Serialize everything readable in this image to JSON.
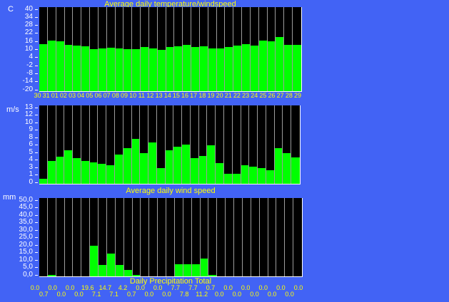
{
  "palette": {
    "background_blue": "#4263f5",
    "plot_black": "#000000",
    "bar_green": "#00ff00",
    "grid_gray": "#9c9c9c",
    "title_yellow": "#ffff00",
    "axis_white": "#ffffff",
    "plot_border_white": "#ffffff"
  },
  "chart_data": [
    {
      "id": "temperature",
      "type": "bar",
      "title": "Average daily temperature/windspeed",
      "unit": "C",
      "ylim": [
        -20,
        40
      ],
      "yticks": [
        "40",
        "34",
        "28",
        "22",
        "16",
        "10",
        "4",
        "-2",
        "-8",
        "-14",
        "-20"
      ],
      "grid": "column-separators",
      "legend": "none",
      "categories": [
        "30",
        "31",
        "01",
        "02",
        "03",
        "04",
        "05",
        "06",
        "07",
        "08",
        "09",
        "10",
        "11",
        "12",
        "13",
        "14",
        "15",
        "16",
        "17",
        "18",
        "19",
        "20",
        "21",
        "22",
        "23",
        "24",
        "25",
        "26",
        "27",
        "28",
        "29"
      ],
      "values": [
        13.5,
        16,
        15.5,
        13,
        12.5,
        12,
        10,
        10.5,
        11,
        10.5,
        10,
        10,
        11.5,
        10.5,
        9.5,
        11.5,
        12,
        13,
        11.5,
        12,
        10.5,
        10.5,
        11.5,
        12.5,
        13.5,
        12.5,
        16,
        15.5,
        18.5,
        13,
        13
      ]
    },
    {
      "id": "wind",
      "type": "bar",
      "title": "",
      "unit": "m/s",
      "ylim": [
        0,
        13
      ],
      "yticks": [
        "13",
        "12",
        "10",
        "9",
        "8",
        "6",
        "5",
        "4",
        "3",
        "1",
        "0"
      ],
      "grid": "column-separators",
      "legend": "none",
      "categories": [
        "30",
        "31",
        "01",
        "02",
        "03",
        "04",
        "05",
        "06",
        "07",
        "08",
        "09",
        "10",
        "11",
        "12",
        "13",
        "14",
        "15",
        "16",
        "17",
        "18",
        "19",
        "20",
        "21",
        "22",
        "23",
        "24",
        "25",
        "26",
        "27",
        "28",
        "29"
      ],
      "values": [
        0.8,
        3.8,
        4.5,
        5.5,
        4.3,
        3.8,
        3.6,
        3.3,
        3.1,
        4.8,
        5.9,
        7.4,
        5.1,
        6.8,
        2.6,
        5.6,
        6.2,
        6.5,
        4.3,
        4.6,
        6.4,
        3.4,
        1.7,
        1.7,
        3.1,
        2.8,
        2.6,
        2.2,
        5.9,
        5.1,
        4.4
      ]
    },
    {
      "id": "precipitation",
      "type": "bar",
      "title": "Average daily wind speed",
      "footer": "Daily Precipitation Total",
      "unit": "mm",
      "ylim": [
        0,
        50
      ],
      "yticks": [
        "50,0",
        "45,0",
        "40,0",
        "35,0",
        "30,0",
        "25,0",
        "20,0",
        "15,0",
        "10,0",
        "5,0",
        "0,0"
      ],
      "grid": "column-separators",
      "legend": "none",
      "categories": [
        "30",
        "31",
        "01",
        "02",
        "03",
        "04",
        "05",
        "06",
        "07",
        "08",
        "09",
        "10",
        "11",
        "12",
        "13",
        "14",
        "15",
        "16",
        "17",
        "18",
        "19",
        "20",
        "21",
        "22",
        "23",
        "24",
        "25",
        "26",
        "27",
        "28",
        "29"
      ],
      "values": [
        0.0,
        0.7,
        0.0,
        0.0,
        0.0,
        0.0,
        19.6,
        7.1,
        14.7,
        7.1,
        4.2,
        0.7,
        0.0,
        0.0,
        0.0,
        0.0,
        7.7,
        7.8,
        7.7,
        11.2,
        0.7,
        0.0,
        0.0,
        0.0,
        0.0,
        0.0,
        0.0,
        0.0,
        0.0,
        0.0,
        0.0
      ],
      "value_labels": [
        "0.0",
        "0.7",
        "0.0",
        "0.0",
        "0.0",
        "0.0",
        "19.6",
        "7.1",
        "14.7",
        "7.1",
        "4.2",
        "0.7",
        "0.0",
        "0.0",
        "0.0",
        "0.0",
        "7.7",
        "7.8",
        "7.7",
        "11.2",
        "0.7",
        "0.0",
        "0.0",
        "0.0",
        "0.0",
        "0.0",
        "0.0",
        "0.0",
        "0.0",
        "0.0",
        "0.0"
      ]
    }
  ]
}
